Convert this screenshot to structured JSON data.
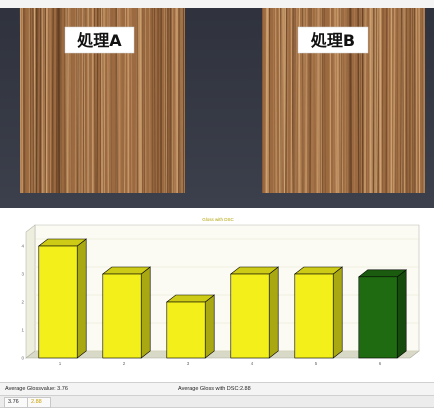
{
  "photo": {
    "label_a": "処理A",
    "label_b": "処理B",
    "colors": {
      "background": "#383c48",
      "hair_base": "#9c6a40",
      "hair_light": "#d3a877",
      "hair_dark": "#5e3c22"
    }
  },
  "chart_data": {
    "type": "bar",
    "title": "Gloss with DSC",
    "categories": [
      "1",
      "2",
      "3",
      "4",
      "5",
      "6"
    ],
    "values": [
      4.0,
      3.0,
      2.0,
      3.0,
      3.0,
      2.9
    ],
    "bar_colors": [
      "#f2ef1a",
      "#f2ef1a",
      "#f2ef1a",
      "#f2ef1a",
      "#f2ef1a",
      "#1f6b12"
    ],
    "ylim": [
      0,
      4.5
    ],
    "yticks": [
      "0",
      "1",
      "2",
      "3",
      "4"
    ],
    "grid": true,
    "xlabel": "",
    "ylabel": ""
  },
  "status": {
    "avg_gloss": "Average Glossvalue: 3.76",
    "avg_gloss_dsc": "Average Gloss with DSC:2.88",
    "avg_value": "3.76",
    "dsc_value": "2.88"
  }
}
